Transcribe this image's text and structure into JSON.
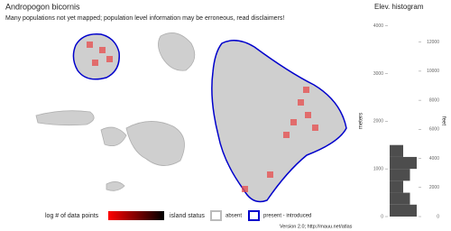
{
  "title": "Andropogon bicornis",
  "subtitle": "Many populations not yet mapped; population level information may be erroneous, read disclaimers!",
  "legend": {
    "density_label": "log # of data points",
    "status_label": "island status",
    "absent": "absent",
    "present": "present - introduced"
  },
  "footer": "Version 2.0; http://mauu.net/atlas",
  "chart_data": {
    "type": "histogram",
    "orientation": "horizontal",
    "title": "Elev. histogram",
    "y_label": "meters",
    "y2_label": "feet",
    "bins": [
      0,
      250,
      500,
      750,
      1000,
      1250,
      1500
    ],
    "counts": [
      4,
      3,
      2,
      3,
      4,
      2
    ],
    "color": "#4d4d4d",
    "ylim": [
      0,
      4200
    ],
    "yticks": [
      0,
      1000,
      2000,
      3000,
      4000
    ],
    "y2lim": [
      0,
      13780
    ],
    "y2ticks": [
      0,
      2000,
      4000,
      6000,
      8000,
      10000,
      12000
    ]
  }
}
